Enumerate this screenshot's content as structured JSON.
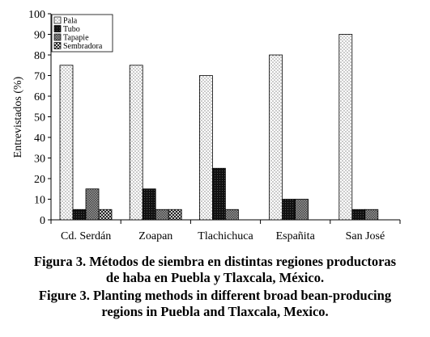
{
  "chart_data": {
    "type": "bar",
    "categories": [
      "Cd. Serdán",
      "Zoapan",
      "Tlachichuca",
      "Españita",
      "San José"
    ],
    "series": [
      {
        "name": "Pala",
        "values": [
          75,
          75,
          70,
          80,
          90
        ]
      },
      {
        "name": "Tubo",
        "values": [
          5,
          15,
          25,
          10,
          5
        ]
      },
      {
        "name": "Tapapie",
        "values": [
          15,
          5,
          5,
          10,
          5
        ]
      },
      {
        "name": "Sembradora",
        "values": [
          5,
          5,
          0,
          0,
          0
        ]
      }
    ],
    "ylabel": "Entrevistados (%)",
    "ylim": [
      0,
      100
    ],
    "yticks": [
      0,
      10,
      20,
      30,
      40,
      50,
      60,
      70,
      80,
      90,
      100
    ],
    "legend_position": "top-left",
    "grid": false
  },
  "caption": {
    "es_line1": "Figura 3. Métodos de siembra en distintas regiones productoras",
    "es_line2": "de haba en Puebla y Tlaxcala, México.",
    "en_line1": "Figure 3. Planting methods in different broad bean-producing",
    "en_line2": "regions in Puebla and Tlaxcala, Mexico."
  }
}
